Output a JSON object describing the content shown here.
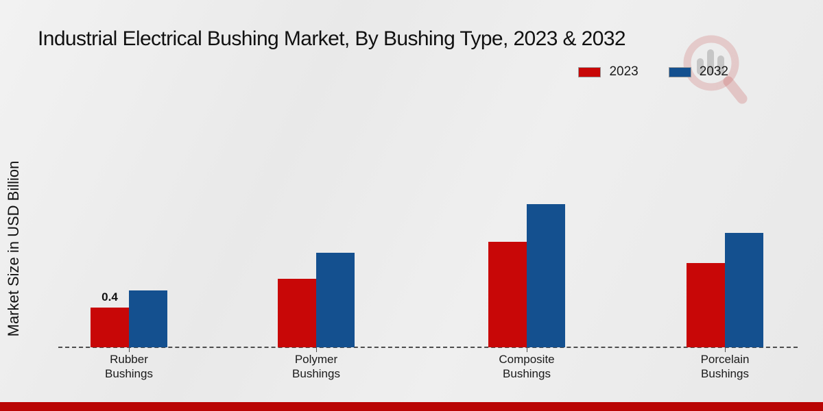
{
  "page": {
    "title": "Industrial Electrical Bushing Market, By Bushing Type, 2023 & 2032",
    "ylabel": "Market Size in USD Billion",
    "footer_color": "#b90504",
    "background_color": "#ebebeb"
  },
  "legend": {
    "items": [
      {
        "label": "2023",
        "color": "#c80707"
      },
      {
        "label": "2032",
        "color": "#14508f"
      }
    ]
  },
  "watermark": {
    "icon": "magnifier-bar-chart-logo"
  },
  "chart_data": {
    "type": "bar",
    "title": "Industrial Electrical Bushing Market, By Bushing Type, 2023 & 2032",
    "categories": [
      "Rubber Bushings",
      "Polymer Bushings",
      "Composite Bushings",
      "Porcelain Bushings"
    ],
    "series": [
      {
        "name": "2023",
        "color": "#c80707",
        "values": [
          0.4,
          0.69,
          1.06,
          0.85
        ],
        "data_labels": [
          "0.4",
          null,
          null,
          null
        ]
      },
      {
        "name": "2032",
        "color": "#14508f",
        "values": [
          0.57,
          0.95,
          1.44,
          1.15
        ],
        "data_labels": [
          null,
          null,
          null,
          null
        ]
      }
    ],
    "xlabel": "",
    "ylabel": "Market Size in USD Billion",
    "ylim": [
      0,
      2.5
    ],
    "grid": false,
    "legend_position": "top-right",
    "baseline_style": "dashed",
    "axis_ticks_shown": false
  }
}
